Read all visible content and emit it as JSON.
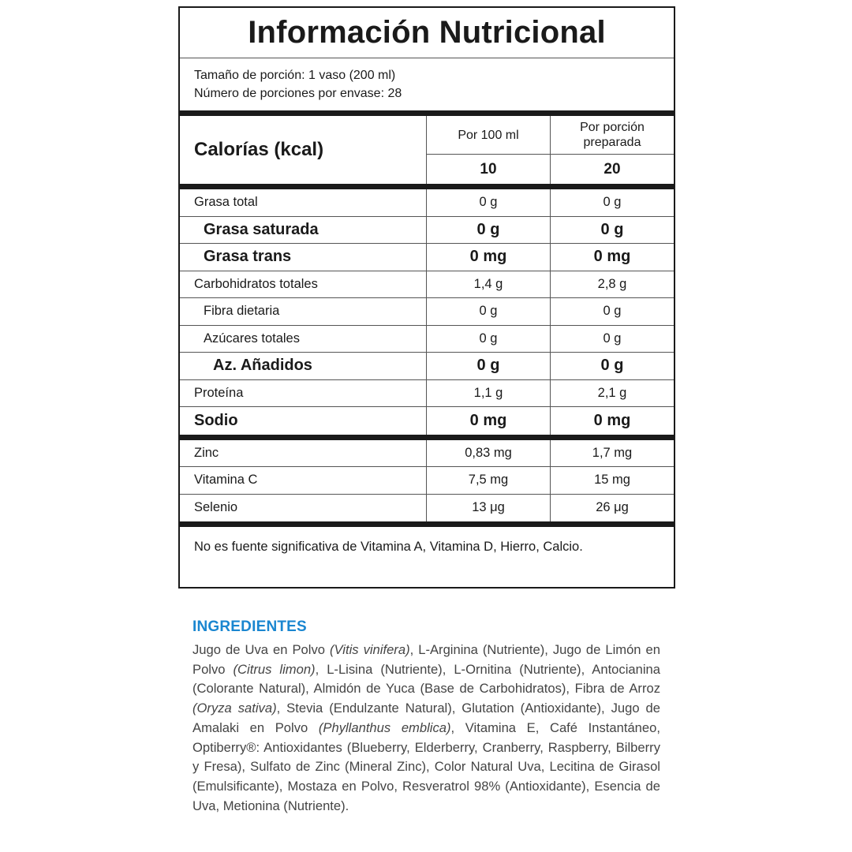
{
  "label": {
    "title": "Información Nutricional",
    "serving_size": "Tamaño de porción: 1 vaso (200 ml)",
    "servings_per_container": "Número de porciones por envase: 28",
    "calories": {
      "name": "Calorías (kcal)",
      "col1_header": "Por 100 ml",
      "col2_header": "Por porción preparada",
      "col1_value": "10",
      "col2_value": "20"
    },
    "nutrients": [
      {
        "name": "Grasa total",
        "per100": "0 g",
        "portion": "0 g",
        "style": ""
      },
      {
        "name": "Grasa saturada",
        "per100": "0 g",
        "portion": "0 g",
        "style": "bold i1"
      },
      {
        "name": "Grasa trans",
        "per100": "0 mg",
        "portion": "0 mg",
        "style": "bold i1"
      },
      {
        "name": "Carbohidratos totales",
        "per100": "1,4 g",
        "portion": "2,8 g",
        "style": ""
      },
      {
        "name": "Fibra dietaria",
        "per100": "0 g",
        "portion": "0 g",
        "style": "i1"
      },
      {
        "name": "Azúcares totales",
        "per100": "0 g",
        "portion": "0 g",
        "style": "i1"
      },
      {
        "name": "Az. Añadidos",
        "per100": "0 g",
        "portion": "0 g",
        "style": "bold i2"
      },
      {
        "name": "Proteína",
        "per100": "1,1  g",
        "portion": "2,1 g",
        "style": ""
      },
      {
        "name": "Sodio",
        "per100": "0 mg",
        "portion": "0 mg",
        "style": "bold last"
      }
    ],
    "minerals": [
      {
        "name": "Zinc",
        "per100": "0,83 mg",
        "portion": "1,7 mg"
      },
      {
        "name": "Vitamina C",
        "per100": "7,5 mg",
        "portion": "15 mg"
      },
      {
        "name": "Selenio",
        "per100": "13 μg",
        "portion": "26 μg"
      }
    ],
    "footnote": "No es fuente significativa de Vitamina A, Vitamina D, Hierro, Calcio."
  },
  "ingredients": {
    "heading": "INGREDIENTES",
    "heading_color": "#1a86d0",
    "segments": [
      {
        "t": "Jugo de Uva en Polvo ",
        "i": false
      },
      {
        "t": "(Vitis vinifera)",
        "i": true
      },
      {
        "t": ", L-Arginina (Nutriente),  Jugo de Limón en Polvo ",
        "i": false
      },
      {
        "t": "(Citrus limon)",
        "i": true
      },
      {
        "t": ", L-Lisina (Nutriente), L-Ornitina (Nutriente), Antocianina (Colorante Natural),  Almidón de Yuca (Base de Carbohidratos), Fibra de Arroz ",
        "i": false
      },
      {
        "t": "(Oryza sativa)",
        "i": true
      },
      {
        "t": ", Stevia (Endulzante Natural), Glutation (Antioxidante), Jugo de Amalaki en Polvo ",
        "i": false
      },
      {
        "t": "(Phyllanthus emblica)",
        "i": true
      },
      {
        "t": ",  Vitamina E, Café Instantáneo,  Optiberry®: Antioxidantes (Blueberry, Elderberry, Cranberry, Raspberry, Bilberry y Fresa), Sulfato de Zinc (Mineral Zinc),  Color Natural Uva, Lecitina de Girasol (Emulsificante), Mostaza en Polvo, Resveratrol 98% (Antioxidante), Esencia de Uva, Metionina (Nutriente).",
        "i": false
      }
    ]
  }
}
